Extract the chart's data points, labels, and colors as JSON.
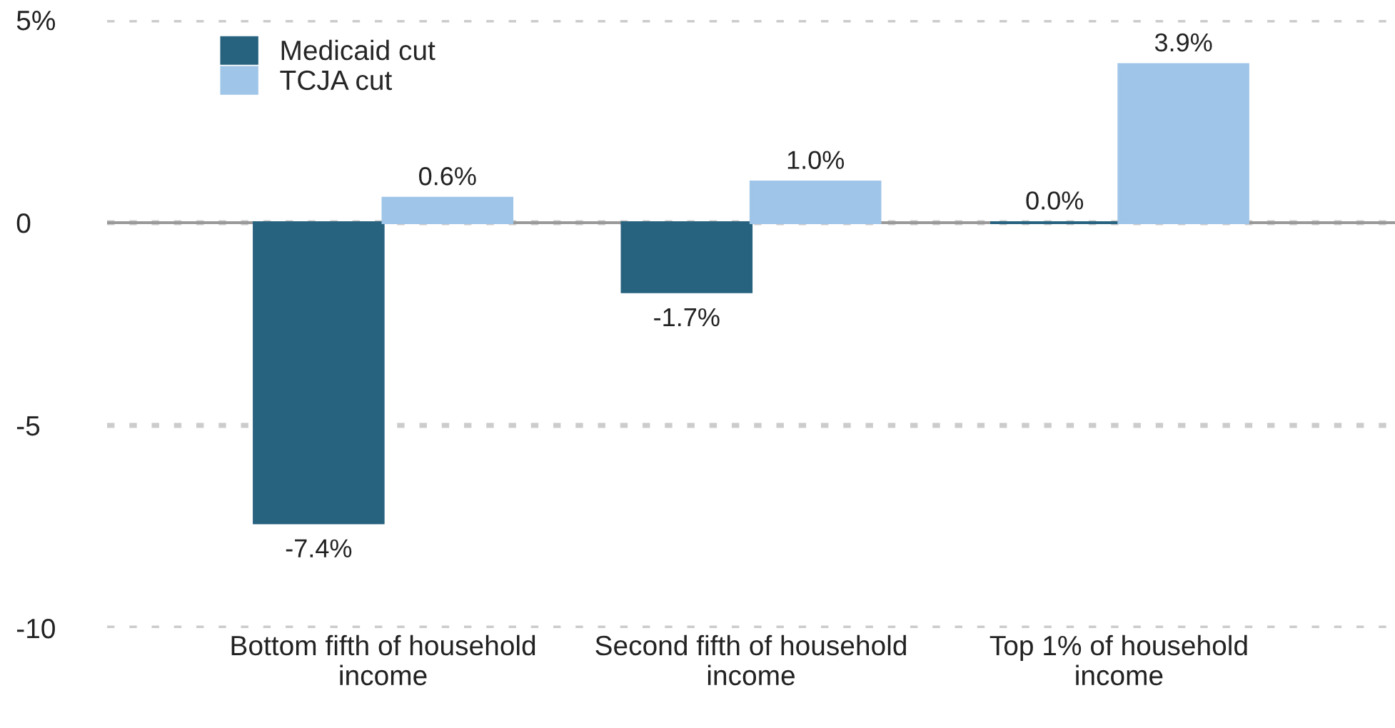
{
  "chart_data": {
    "type": "bar",
    "categories": [
      "Bottom fifth of household income",
      "Second fifth of household income",
      "Top 1% of household income"
    ],
    "series": [
      {
        "name": "Medicaid cut",
        "color": "#27627f",
        "values": [
          -7.4,
          -1.7,
          0.0
        ],
        "value_labels": [
          "-7.4%",
          "-1.7%",
          "0.0%"
        ]
      },
      {
        "name": "TCJA cut",
        "color": "#9fc5e8",
        "values": [
          0.6,
          1.0,
          3.9
        ],
        "value_labels": [
          "0.6%",
          "1.0%",
          "3.9%"
        ]
      }
    ],
    "ylim": [
      -10,
      5
    ],
    "yticks": [
      {
        "value": 5,
        "label": "5%"
      },
      0,
      -5,
      -10
    ],
    "grid": "y",
    "legend": "top left",
    "ref_lines": [
      {
        "axis": "y",
        "value": 0,
        "color": "#999999"
      }
    ]
  }
}
